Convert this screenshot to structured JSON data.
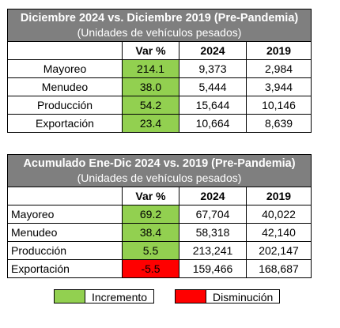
{
  "table1": {
    "title": "Diciembre 2024 vs. Diciembre 2019 (Pre-Pandemia)",
    "subtitle": "(Unidades de vehículos pesados)",
    "columns": [
      "Var %",
      "2024",
      "2019"
    ],
    "rows": [
      {
        "label": "Mayoreo",
        "var": "214.1",
        "v2024": "9,373",
        "v2019": "2,984",
        "var_status": "increase"
      },
      {
        "label": "Menudeo",
        "var": "38.0",
        "v2024": "5,444",
        "v2019": "3,944",
        "var_status": "increase"
      },
      {
        "label": "Producción",
        "var": "54.2",
        "v2024": "15,644",
        "v2019": "10,146",
        "var_status": "increase"
      },
      {
        "label": "Exportación",
        "var": "23.4",
        "v2024": "10,664",
        "v2019": "8,639",
        "var_status": "increase"
      }
    ]
  },
  "table2": {
    "title": "Acumulado Ene-Dic 2024 vs. 2019 (Pre-Pandemia)",
    "subtitle": "(Unidades de vehículos pesados)",
    "columns": [
      "Var %",
      "2024",
      "2019"
    ],
    "rows": [
      {
        "label": "Mayoreo",
        "var": "69.2",
        "v2024": "67,704",
        "v2019": "40,022",
        "var_status": "increase"
      },
      {
        "label": "Menudeo",
        "var": "38.4",
        "v2024": "58,318",
        "v2019": "42,140",
        "var_status": "increase"
      },
      {
        "label": "Producción",
        "var": "5.5",
        "v2024": "213,241",
        "v2019": "202,147",
        "var_status": "increase"
      },
      {
        "label": "Exportación",
        "var": "-5.5",
        "v2024": "159,466",
        "v2019": "168,687",
        "var_status": "decrease"
      }
    ]
  },
  "legend": {
    "increase_label": "Incremento",
    "decrease_label": "Disminución",
    "increase_color": "#92d050",
    "decrease_color": "#ff0000"
  }
}
